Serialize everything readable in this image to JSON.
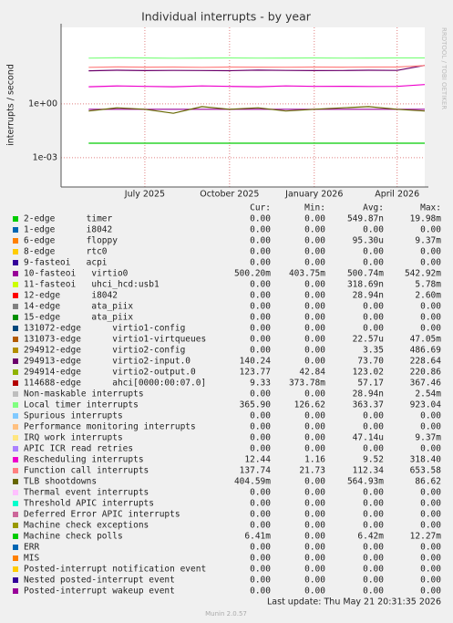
{
  "chart_data": {
    "type": "line",
    "title": "Individual interrupts - by year",
    "y_label": "interrupts / second",
    "side_label": "RRDTOOL / TOBI OETIKER",
    "log_scale": true,
    "grid": true,
    "ylim": [
      2.3e-05,
      18600
    ],
    "yticks": [
      {
        "value": 1,
        "label": "1e+00"
      },
      {
        "value": 0.001,
        "label": "1e-03"
      }
    ],
    "xlim": [
      "2025-04",
      "2026-05"
    ],
    "xticks": [
      {
        "value": "2025-07",
        "label": "July 2025"
      },
      {
        "value": "2025-10",
        "label": "October 2025"
      },
      {
        "value": "2026-01",
        "label": "January 2026"
      },
      {
        "value": "2026-04",
        "label": "April 2026"
      }
    ],
    "x": [
      "2025-05",
      "2025-06",
      "2025-07",
      "2025-08",
      "2025-09",
      "2025-10",
      "2025-11",
      "2025-12",
      "2026-01",
      "2026-02",
      "2026-03",
      "2026-04",
      "2026-05"
    ],
    "legend_headers": [
      "Cur:",
      "Min:",
      "Avg:",
      "Max:"
    ],
    "series": [
      {
        "name": "2-edge      timer",
        "color": "#00cc00",
        "stats": [
          "0.00",
          "0.00",
          "549.87n",
          "19.98m"
        ]
      },
      {
        "name": "1-edge      i8042",
        "color": "#0066b3",
        "stats": [
          "0.00",
          "0.00",
          "0.00",
          "0.00"
        ]
      },
      {
        "name": "6-edge      floppy",
        "color": "#ff8000",
        "stats": [
          "0.00",
          "0.00",
          "95.30u",
          "9.37m"
        ]
      },
      {
        "name": "8-edge      rtc0",
        "color": "#ffcc00",
        "stats": [
          "0.00",
          "0.00",
          "0.00",
          "0.00"
        ]
      },
      {
        "name": "9-fasteoi   acpi",
        "color": "#330099",
        "stats": [
          "0.00",
          "0.00",
          "0.00",
          "0.00"
        ]
      },
      {
        "name": "10-fasteoi   virtio0",
        "color": "#990099",
        "stats": [
          "500.20m",
          "403.75m",
          "500.74m",
          "542.92m"
        ],
        "values": [
          0.5,
          0.5,
          0.5,
          0.5,
          0.5,
          0.5,
          0.5,
          0.5,
          0.5,
          0.5,
          0.5,
          0.5,
          0.5
        ]
      },
      {
        "name": "11-fasteoi   uhci_hcd:usb1",
        "color": "#ccff00",
        "stats": [
          "0.00",
          "0.00",
          "318.69n",
          "5.78m"
        ]
      },
      {
        "name": "12-edge      i8042",
        "color": "#ff0000",
        "stats": [
          "0.00",
          "0.00",
          "28.94n",
          "2.60m"
        ]
      },
      {
        "name": "14-edge      ata_piix",
        "color": "#808080",
        "stats": [
          "0.00",
          "0.00",
          "0.00",
          "0.00"
        ]
      },
      {
        "name": "15-edge      ata_piix",
        "color": "#008f00",
        "stats": [
          "0.00",
          "0.00",
          "0.00",
          "0.00"
        ]
      },
      {
        "name": "131072-edge      virtio1-config",
        "color": "#00487d",
        "stats": [
          "0.00",
          "0.00",
          "0.00",
          "0.00"
        ]
      },
      {
        "name": "131073-edge      virtio1-virtqueues",
        "color": "#b35a00",
        "stats": [
          "0.00",
          "0.00",
          "22.57u",
          "47.05m"
        ]
      },
      {
        "name": "294912-edge      virtio2-config",
        "color": "#b38f00",
        "stats": [
          "0.00",
          "0.00",
          "3.35",
          "486.69"
        ]
      },
      {
        "name": "294913-edge      virtio2-input.0",
        "color": "#6b006b",
        "stats": [
          "140.24",
          "0.00",
          "73.70",
          "228.64"
        ],
        "values": [
          70,
          75,
          72,
          74,
          73,
          71,
          76,
          74,
          72,
          73,
          75,
          74,
          140
        ]
      },
      {
        "name": "294914-edge      virtio2-output.0",
        "color": "#8fb300",
        "stats": [
          "123.77",
          "42.84",
          "123.02",
          "220.86"
        ]
      },
      {
        "name": "114688-edge      ahci[0000:00:07.0]",
        "color": "#b30000",
        "stats": [
          "9.33",
          "373.78m",
          "57.17",
          "367.46"
        ]
      },
      {
        "name": "Non-maskable interrupts",
        "color": "#bebebe",
        "stats": [
          "0.00",
          "0.00",
          "28.94n",
          "2.54m"
        ]
      },
      {
        "name": "Local timer interrupts",
        "color": "#80ff80",
        "stats": [
          "365.90",
          "126.62",
          "363.37",
          "923.04"
        ],
        "values": [
          360,
          370,
          365,
          355,
          362,
          368,
          360,
          364,
          366,
          358,
          363,
          365,
          366
        ]
      },
      {
        "name": "Spurious interrupts",
        "color": "#80c9ff",
        "stats": [
          "0.00",
          "0.00",
          "0.00",
          "0.00"
        ]
      },
      {
        "name": "Performance monitoring interrupts",
        "color": "#ffc080",
        "stats": [
          "0.00",
          "0.00",
          "0.00",
          "0.00"
        ]
      },
      {
        "name": "IRQ work interrupts",
        "color": "#ffe680",
        "stats": [
          "0.00",
          "0.00",
          "47.14u",
          "9.37m"
        ]
      },
      {
        "name": "APIC ICR read retries",
        "color": "#aa80ff",
        "stats": [
          "0.00",
          "0.00",
          "0.00",
          "0.00"
        ]
      },
      {
        "name": "Rescheduling interrupts",
        "color": "#ee00cc",
        "stats": [
          "12.44",
          "1.16",
          "9.52",
          "318.40"
        ],
        "values": [
          9,
          10,
          9.5,
          9,
          10,
          9.5,
          9,
          10,
          9.5,
          9.6,
          9.4,
          9.5,
          12
        ]
      },
      {
        "name": "Function call interrupts",
        "color": "#ff8080",
        "stats": [
          "137.74",
          "21.73",
          "112.34",
          "653.58"
        ],
        "values": [
          110,
          115,
          112,
          113,
          110,
          114,
          112,
          111,
          113,
          112,
          114,
          113,
          137
        ]
      },
      {
        "name": "TLB shootdowns",
        "color": "#666600",
        "stats": [
          "404.59m",
          "0.00",
          "564.93m",
          "86.62"
        ],
        "values": [
          0.4,
          0.6,
          0.5,
          0.3,
          0.7,
          0.5,
          0.6,
          0.4,
          0.5,
          0.6,
          0.7,
          0.5,
          0.4
        ]
      },
      {
        "name": "Thermal event interrupts",
        "color": "#ffbfff",
        "stats": [
          "0.00",
          "0.00",
          "0.00",
          "0.00"
        ]
      },
      {
        "name": "Threshold APIC interrupts",
        "color": "#00ffcc",
        "stats": [
          "0.00",
          "0.00",
          "0.00",
          "0.00"
        ]
      },
      {
        "name": "Deferred Error APIC interrupts",
        "color": "#cc6699",
        "stats": [
          "0.00",
          "0.00",
          "0.00",
          "0.00"
        ]
      },
      {
        "name": "Machine check exceptions",
        "color": "#999900",
        "stats": [
          "0.00",
          "0.00",
          "0.00",
          "0.00"
        ]
      },
      {
        "name": "Machine check polls",
        "color": "#00cc00",
        "stats": [
          "6.41m",
          "0.00",
          "6.42m",
          "12.27m"
        ],
        "values": [
          0.0064,
          0.0064,
          0.0064,
          0.0064,
          0.0064,
          0.0064,
          0.0064,
          0.0064,
          0.0064,
          0.0064,
          0.0064,
          0.0064,
          0.0064
        ]
      },
      {
        "name": "ERR",
        "color": "#0066b3",
        "stats": [
          "0.00",
          "0.00",
          "0.00",
          "0.00"
        ]
      },
      {
        "name": "MIS",
        "color": "#ff8000",
        "stats": [
          "0.00",
          "0.00",
          "0.00",
          "0.00"
        ]
      },
      {
        "name": "Posted-interrupt notification event",
        "color": "#ffcc00",
        "stats": [
          "0.00",
          "0.00",
          "0.00",
          "0.00"
        ]
      },
      {
        "name": "Nested posted-interrupt event",
        "color": "#330099",
        "stats": [
          "0.00",
          "0.00",
          "0.00",
          "0.00"
        ]
      },
      {
        "name": "Posted-interrupt wakeup event",
        "color": "#990099",
        "stats": [
          "0.00",
          "0.00",
          "0.00",
          "0.00"
        ]
      }
    ],
    "last_update": "Last update: Thu May 21 20:31:35 2026",
    "footer": "Munin 2.0.57"
  }
}
